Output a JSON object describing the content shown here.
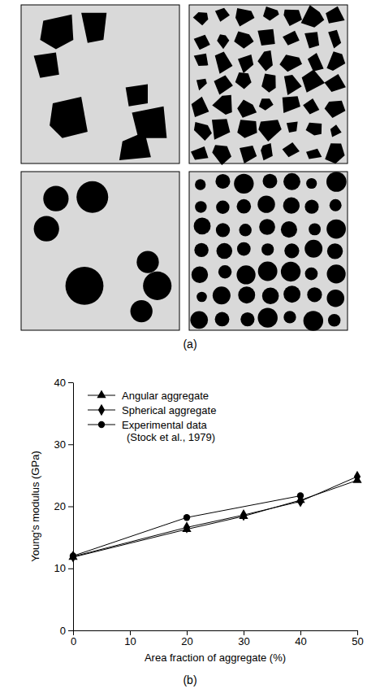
{
  "diagram": {
    "label": "(a)"
  },
  "chart_data": {
    "type": "line",
    "label": "(b)",
    "x_label": "Area fraction of aggregate (%)",
    "y_label": "Young's modulus (GPa)",
    "x": [
      0,
      20,
      30,
      40,
      50
    ],
    "series": [
      {
        "name": "Angular aggregate",
        "color": "#000000",
        "marker": "triangle",
        "line_style": "solid",
        "values": [
          11.8,
          16.3,
          18.4,
          21.0,
          24.2
        ]
      },
      {
        "name": "Spherical aggregate",
        "color": "#000000",
        "marker": "diamond",
        "line_style": "solid",
        "values": [
          11.9,
          16.6,
          18.6,
          20.8,
          24.8
        ]
      },
      {
        "name": "Experimental data (Stock et al., 1979)",
        "color": "#000000",
        "marker": "circle",
        "line_style": "solid",
        "x": [
          0,
          20,
          40
        ],
        "values": [
          12.0,
          18.2,
          21.7
        ]
      }
    ],
    "xlim": [
      0,
      50
    ],
    "xticks": [
      0,
      10,
      20,
      30,
      40,
      50
    ],
    "ylim": [
      0,
      40
    ],
    "yticks": [
      0,
      10,
      20,
      30,
      40
    ],
    "grid": false,
    "legend": "upper left"
  }
}
